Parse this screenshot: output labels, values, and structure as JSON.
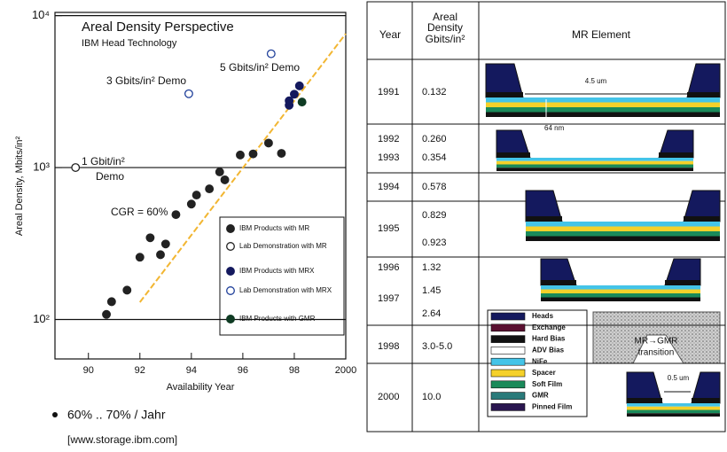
{
  "chart_data": {
    "type": "scatter",
    "title": "Areal Density Perspective",
    "subtitle": "IBM Head Technology",
    "x_label": "Availability Year",
    "y_label": "Areal Density, Mbits/in²",
    "xlim": [
      88.7,
      100
    ],
    "xticks": [
      90,
      92,
      94,
      96,
      98,
      {
        "value": 100,
        "label": "2000"
      }
    ],
    "ylim": [
      55,
      10500
    ],
    "log_y": true,
    "yticks": [
      {
        "value": 100,
        "label": "10²"
      },
      {
        "value": 1000,
        "label": "10³"
      },
      {
        "value": 10000,
        "label": "10⁴"
      }
    ],
    "grid": true,
    "annotations": [
      "3 Gbits/in² Demo",
      "5 Gbits/in² Demo",
      "1 Gbit/in²",
      "Demo",
      "CGR = 60%"
    ],
    "trend_line": {
      "color": "#f2b632",
      "x": [
        92,
        100
      ],
      "values": [
        130,
        7600
      ]
    },
    "series": [
      {
        "name": "IBM Products with MR",
        "color": "#222222",
        "filled": true,
        "x": [
          90.7,
          90.9,
          91.5,
          92.0,
          92.4,
          92.8,
          93.0,
          93.4,
          94.0,
          94.2,
          94.7,
          95.1,
          95.3,
          95.9,
          96.4,
          97.0,
          97.5
        ],
        "values": [
          108,
          131,
          156,
          257,
          345,
          267,
          314,
          490,
          575,
          659,
          724,
          936,
          830,
          1210,
          1230,
          1450,
          1240
        ]
      },
      {
        "name": "Lab Demonstration with MR",
        "color": "#222222",
        "filled": false,
        "x": [
          89.5
        ],
        "values": [
          1000
        ]
      },
      {
        "name": "IBM Products with MRX",
        "color": "#14195e",
        "filled": true,
        "x": [
          97.8,
          97.8,
          98.0,
          98.2
        ],
        "values": [
          2570,
          2750,
          3040,
          3450
        ]
      },
      {
        "name": "Lab Demonstration with MRX",
        "color": "#1f3f9a",
        "filled": false,
        "x": [
          93.9,
          97.1
        ],
        "values": [
          3060,
          5610
        ]
      },
      {
        "name": "IBM Products with GMR",
        "color": "#0f3b23",
        "filled": true,
        "x": [
          98.3
        ],
        "values": [
          2700
        ]
      }
    ]
  },
  "bullet": "60% .. 70% / Jahr",
  "source": "[www.storage.ibm.com]",
  "table": {
    "header": {
      "year": "Year",
      "density": [
        "Areal",
        "Density",
        "Gbits/in²"
      ],
      "element": "MR Element"
    },
    "rows": [
      {
        "years": [
          "1991"
        ],
        "densities": [
          "0.132"
        ]
      },
      {
        "years": [
          "1992",
          "1993"
        ],
        "densities": [
          "0.260",
          "0.354"
        ]
      },
      {
        "years": [
          "1994"
        ],
        "densities": [
          "0.578"
        ]
      },
      {
        "years": [
          "1995"
        ],
        "densities": [
          "0.829",
          "0.923"
        ]
      },
      {
        "years": [
          "1996",
          "1997"
        ],
        "densities": [
          "1.32",
          "1.45",
          "2.64"
        ]
      },
      {
        "years": [
          "1998"
        ],
        "densities": [
          "3.0-5.0"
        ]
      },
      {
        "years": [
          "2000"
        ],
        "densities": [
          "10.0"
        ]
      }
    ]
  },
  "mr_element": {
    "width_label": "4.5 um",
    "thickness_label": "64 nm",
    "gap_label": "0.5 um",
    "transition_label": [
      "MR→GMR",
      "transition"
    ],
    "legend": [
      "Heads",
      "Exchange",
      "Hard Bias",
      "ADV Bias",
      "NiFe",
      "Spacer",
      "Soft Film",
      "GMR",
      "Pinned Film"
    ]
  }
}
